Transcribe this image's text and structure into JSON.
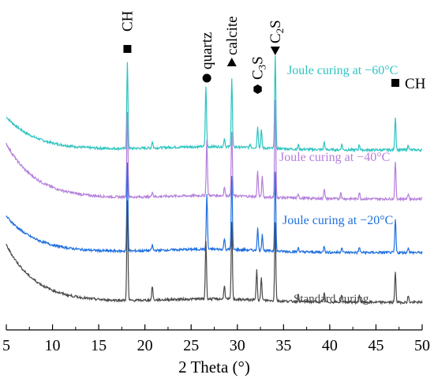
{
  "chart_data": {
    "type": "line",
    "xlabel": "2 Theta (°)",
    "ylabel": "",
    "xlim": [
      5,
      50
    ],
    "xticks": [
      "5",
      "10",
      "15",
      "20",
      "25",
      "30",
      "35",
      "40",
      "45",
      "50"
    ],
    "y_axis_shown": false,
    "grid": false,
    "legend": "none",
    "series": [
      {
        "name": "Joule curing at −60°C",
        "color": "#2ec4c0",
        "offset": 3,
        "base_start": 0.3,
        "base_end": 0.0,
        "peaks": [
          [
            18.1,
            0.78
          ],
          [
            20.8,
            0.06
          ],
          [
            26.6,
            0.55
          ],
          [
            28.6,
            0.08
          ],
          [
            29.4,
            0.62
          ],
          [
            31.4,
            0.03
          ],
          [
            32.2,
            0.2
          ],
          [
            32.6,
            0.16
          ],
          [
            34.1,
            0.85
          ],
          [
            36.6,
            0.04
          ],
          [
            39.4,
            0.07
          ],
          [
            41.3,
            0.05
          ],
          [
            43.2,
            0.05
          ],
          [
            47.1,
            0.3
          ],
          [
            48.5,
            0.05
          ]
        ]
      },
      {
        "name": "Joule curing at −40°C",
        "color": "#b57edc",
        "offset": 2,
        "base_start": 0.5,
        "base_end": 0.0,
        "peaks": [
          [
            18.1,
            0.78
          ],
          [
            20.8,
            0.05
          ],
          [
            26.7,
            0.5
          ],
          [
            28.6,
            0.08
          ],
          [
            29.4,
            0.58
          ],
          [
            32.2,
            0.24
          ],
          [
            32.7,
            0.18
          ],
          [
            34.1,
            0.88
          ],
          [
            36.6,
            0.04
          ],
          [
            39.4,
            0.09
          ],
          [
            41.2,
            0.06
          ],
          [
            43.2,
            0.06
          ],
          [
            47.1,
            0.34
          ],
          [
            48.5,
            0.05
          ]
        ]
      },
      {
        "name": "Joule curing at −20°C",
        "color": "#1e6fe0",
        "offset": 1,
        "base_start": 0.33,
        "base_end": 0.0,
        "peaks": [
          [
            18.1,
            0.8
          ],
          [
            20.8,
            0.05
          ],
          [
            26.7,
            0.5
          ],
          [
            28.6,
            0.1
          ],
          [
            29.4,
            0.66
          ],
          [
            32.2,
            0.2
          ],
          [
            32.7,
            0.15
          ],
          [
            34.1,
            0.72
          ],
          [
            36.6,
            0.04
          ],
          [
            39.4,
            0.06
          ],
          [
            41.3,
            0.05
          ],
          [
            43.2,
            0.05
          ],
          [
            47.1,
            0.3
          ],
          [
            48.5,
            0.05
          ]
        ]
      },
      {
        "name": "Standard curing",
        "color": "#4a4a4a",
        "offset": 0,
        "base_start": 0.52,
        "base_end": 0.0,
        "peaks": [
          [
            18.1,
            0.9
          ],
          [
            20.8,
            0.13
          ],
          [
            26.6,
            0.53
          ],
          [
            28.6,
            0.13
          ],
          [
            29.4,
            0.7
          ],
          [
            32.1,
            0.28
          ],
          [
            32.6,
            0.2
          ],
          [
            34.1,
            0.71
          ],
          [
            36.6,
            0.06
          ],
          [
            39.4,
            0.09
          ],
          [
            41.3,
            0.07
          ],
          [
            43.2,
            0.07
          ],
          [
            47.1,
            0.28
          ],
          [
            48.5,
            0.06
          ]
        ]
      }
    ],
    "annotations": [
      {
        "key": "ch-top",
        "label": "CH",
        "marker": "square",
        "x": 18.1
      },
      {
        "key": "quartz",
        "label": "quartz",
        "marker": "circle",
        "x": 26.7
      },
      {
        "key": "calcite",
        "label": "calcite",
        "marker": "triangle-up",
        "x": 29.4
      },
      {
        "key": "c3s",
        "label": "C3S",
        "marker": "hexagon",
        "x": 32.2
      },
      {
        "key": "c2s",
        "label": "C2S",
        "marker": "triangle-down",
        "x": 34.1
      },
      {
        "key": "ch-right",
        "label": "CH",
        "marker": "square",
        "x": 47.1
      }
    ]
  }
}
